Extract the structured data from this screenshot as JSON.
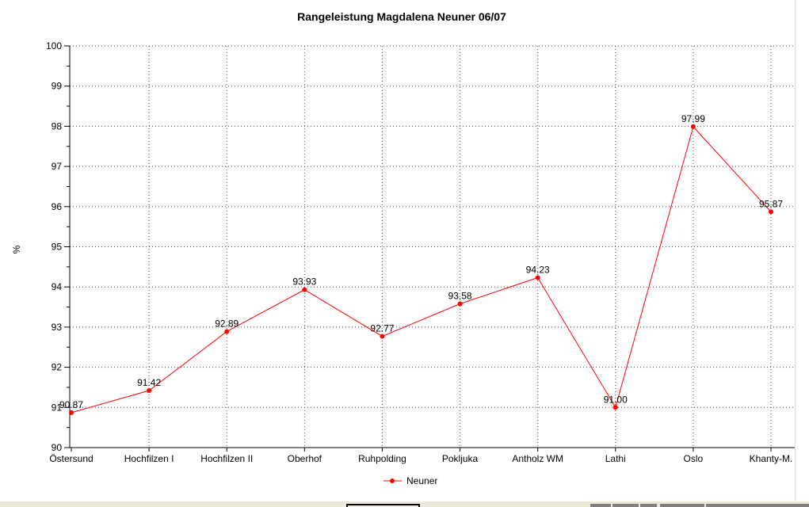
{
  "window": {
    "background": "#ffffff",
    "right_border_color": "#e0ddcc"
  },
  "chart_data": {
    "type": "line",
    "title": "Rangeleistung Magdalena Neuner 06/07",
    "ylabel": "%",
    "xlabel": "",
    "ylim": [
      90,
      100
    ],
    "y_tick_step": 1,
    "y_minor_tick_step": 0.5,
    "y_tick_labels": [
      "90",
      "91",
      "92",
      "93",
      "94",
      "95",
      "96",
      "97",
      "98",
      "99",
      "100"
    ],
    "grid": "dotted",
    "grid_color": "#4a4a4a",
    "axis_color": "#000000",
    "categories": [
      "Östersund",
      "Hochfilzen I",
      "Hochfilzen II",
      "Oberhof",
      "Ruhpolding",
      "Pokljuka",
      "Antholz WM",
      "Lathi",
      "Oslo",
      "Khanty-M."
    ],
    "series": [
      {
        "name": "Neuner",
        "color": "#ff0000",
        "values": [
          90.87,
          91.42,
          92.89,
          93.93,
          92.77,
          93.58,
          94.23,
          91.0,
          97.99,
          95.87
        ],
        "point_labels": [
          "90.87",
          "91.42",
          "92.89",
          "93.93",
          "92.77",
          "93.58",
          "94.23",
          "91.00",
          "97.99",
          "95.87"
        ]
      }
    ],
    "legend_position": "bottom-center"
  },
  "bottom_bar": {
    "background": "#ece9d8",
    "active_button_border": "#000000",
    "segment_color": "#808080"
  }
}
